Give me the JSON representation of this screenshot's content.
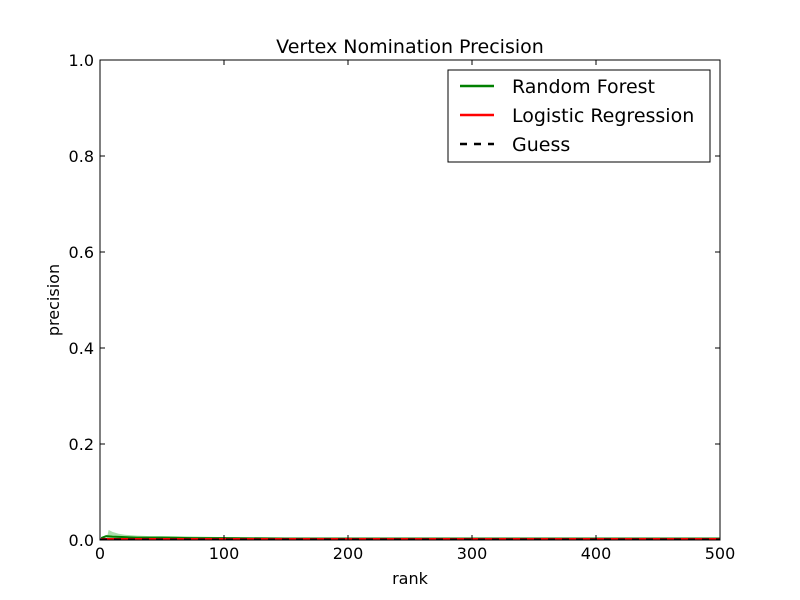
{
  "chart_data": {
    "type": "line",
    "title": "Vertex Nomination Precision",
    "xlabel": "rank",
    "ylabel": "precision",
    "xlim": [
      0,
      500
    ],
    "ylim": [
      0,
      1.0
    ],
    "x_ticks": [
      "0",
      "100",
      "200",
      "300",
      "400",
      "500"
    ],
    "y_ticks": [
      "0.0",
      "0.2",
      "0.4",
      "0.6",
      "0.8",
      "1.0"
    ],
    "grid": false,
    "legend_position": "top-right",
    "colors": {
      "random_forest": "#008000",
      "logistic_regression": "#ff0000",
      "guess": "#000000",
      "rf_band": "#8fd18f"
    },
    "series": [
      {
        "name": "Random Forest",
        "style": "solid",
        "x": [
          1,
          5,
          10,
          20,
          30,
          50,
          75,
          100,
          150,
          200,
          300,
          400,
          500
        ],
        "y": [
          0.004,
          0.008,
          0.007,
          0.006,
          0.005,
          0.005,
          0.004,
          0.004,
          0.003,
          0.003,
          0.003,
          0.003,
          0.003
        ]
      },
      {
        "name": "Logistic Regression",
        "style": "solid",
        "x": [
          1,
          10,
          25,
          50,
          100,
          200,
          300,
          400,
          500
        ],
        "y": [
          0.002,
          0.002,
          0.002,
          0.002,
          0.002,
          0.002,
          0.002,
          0.002,
          0.002
        ]
      },
      {
        "name": "Guess",
        "style": "dashed",
        "x": [
          0,
          500
        ],
        "y": [
          0.001,
          0.001
        ]
      }
    ],
    "band": {
      "series": "Random Forest",
      "x": [
        5,
        7,
        10,
        15,
        20,
        30,
        40,
        60,
        80,
        100,
        150,
        200,
        300,
        400,
        500
      ],
      "upper": [
        0.0,
        0.021,
        0.017,
        0.013,
        0.011,
        0.009,
        0.008,
        0.008,
        0.007,
        0.006,
        0.005,
        0.004,
        0.004,
        0.004,
        0.003
      ],
      "lower": [
        0.0,
        0.0,
        0.0,
        0.0,
        0.0,
        0.0,
        0.0,
        0.0,
        0.0,
        0.0,
        0.0,
        0.0,
        0.0,
        0.0,
        0.0
      ]
    }
  }
}
